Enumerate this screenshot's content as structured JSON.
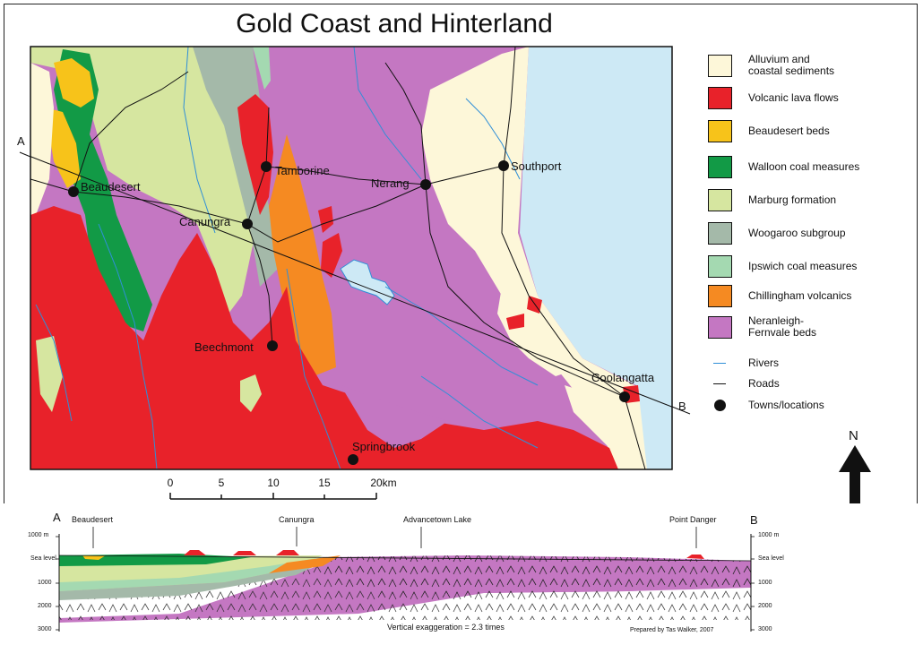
{
  "title": "Gold Coast and Hinterland",
  "legend": [
    {
      "label": "Alluvium and\ncoastal sediments",
      "color": "#fdf7d9",
      "icon": "swatch"
    },
    {
      "label": "Volcanic lava flows",
      "color": "#e8222a",
      "icon": "swatch"
    },
    {
      "label": "Beaudesert beds",
      "color": "#f7c31a",
      "icon": "swatch"
    },
    {
      "label": "Walloon coal measures",
      "color": "#129a46",
      "icon": "swatch"
    },
    {
      "label": "Marburg formation",
      "color": "#d6e6a0",
      "icon": "swatch"
    },
    {
      "label": "Woogaroo subgroup",
      "color": "#a4b9a9",
      "icon": "swatch"
    },
    {
      "label": "Ipswich coal measures",
      "color": "#a4d9b1",
      "icon": "swatch"
    },
    {
      "label": "Chillingham volcanics",
      "color": "#f58a22",
      "icon": "swatch"
    },
    {
      "label": "Neranleigh-\nFernvale beds",
      "color": "#c477c2",
      "icon": "swatch"
    },
    {
      "label": "Rivers",
      "color": "#2f8fd8",
      "icon": "line"
    },
    {
      "label": "Roads",
      "color": "#111111",
      "icon": "line"
    },
    {
      "label": "Towns/locations",
      "color": "#111111",
      "icon": "dot"
    }
  ],
  "towns": [
    "Beaudesert",
    "Tamborine",
    "Canungra",
    "Nerang",
    "Southport",
    "Beechmont",
    "Coolangatta",
    "Springbrook"
  ],
  "section_line": {
    "start": "A",
    "end": "B"
  },
  "scale_bar": {
    "ticks": [
      "0",
      "5",
      "10",
      "15",
      "20km"
    ]
  },
  "north_arrow": {
    "label": "N"
  },
  "cross_section": {
    "start": "A",
    "end": "B",
    "places": [
      "Beaudesert",
      "Canungra",
      "Advancetown Lake",
      "Point Danger"
    ],
    "depth_labels": [
      "1000 m",
      "Sea level",
      "1000",
      "2000",
      "3000"
    ],
    "exaggeration": "Vertical exaggeration = 2.3 times",
    "credit": "Prepared by Tas Walker, 2007"
  }
}
